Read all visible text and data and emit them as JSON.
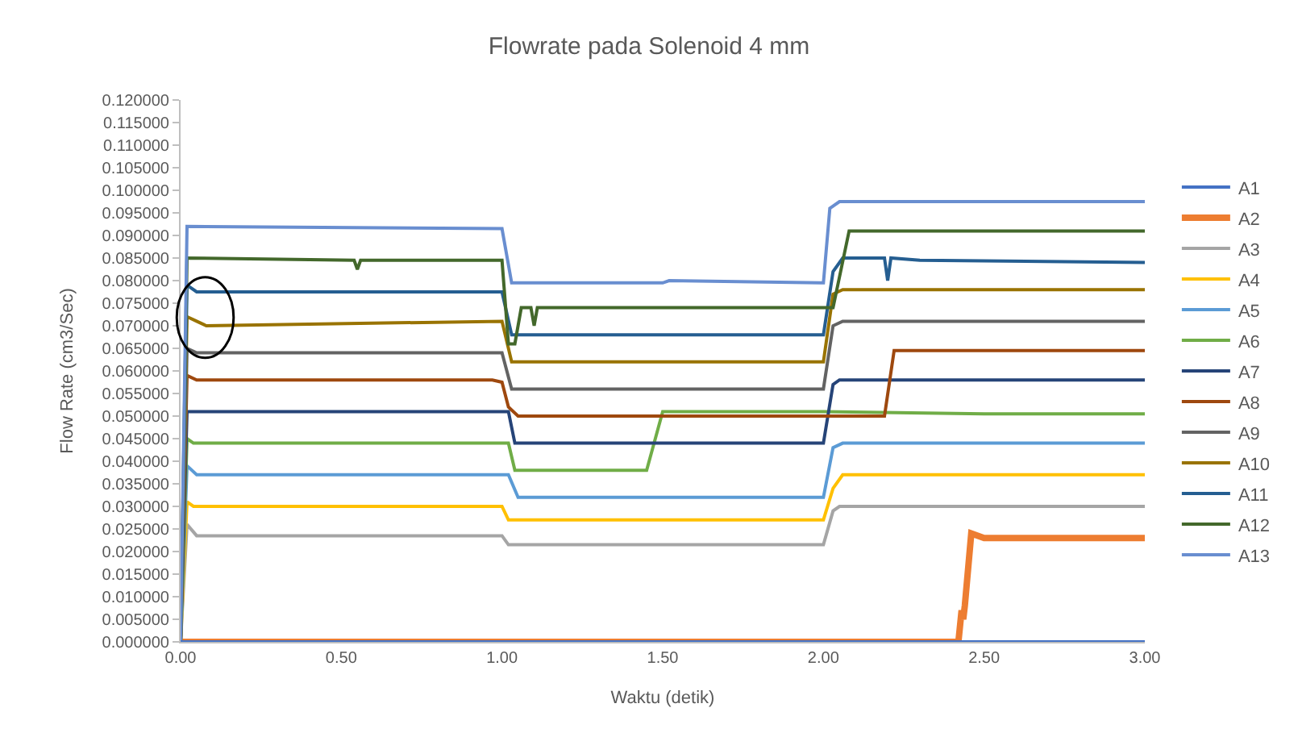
{
  "chart_data": {
    "type": "line",
    "title": "Flowrate pada Solenoid 4 mm",
    "xlabel": "Waktu (detik)",
    "ylabel": "Flow Rate (cm3/Sec)",
    "xlim": [
      0,
      3
    ],
    "ylim": [
      0,
      0.12
    ],
    "xticks": [
      {
        "value": 0,
        "label": "0.00"
      },
      {
        "value": 0.5,
        "label": "0.50"
      },
      {
        "value": 1,
        "label": "1.00"
      },
      {
        "value": 1.5,
        "label": "1.50"
      },
      {
        "value": 2,
        "label": "2.00"
      },
      {
        "value": 2.5,
        "label": "2.50"
      },
      {
        "value": 3,
        "label": "3.00"
      }
    ],
    "yticks": [
      {
        "value": 0,
        "label": "0.000000"
      },
      {
        "value": 0.005,
        "label": "0.005000"
      },
      {
        "value": 0.01,
        "label": "0.010000"
      },
      {
        "value": 0.015,
        "label": "0.015000"
      },
      {
        "value": 0.02,
        "label": "0.020000"
      },
      {
        "value": 0.025,
        "label": "0.025000"
      },
      {
        "value": 0.03,
        "label": "0.030000"
      },
      {
        "value": 0.035,
        "label": "0.035000"
      },
      {
        "value": 0.04,
        "label": "0.040000"
      },
      {
        "value": 0.045,
        "label": "0.045000"
      },
      {
        "value": 0.05,
        "label": "0.050000"
      },
      {
        "value": 0.055,
        "label": "0.055000"
      },
      {
        "value": 0.06,
        "label": "0.060000"
      },
      {
        "value": 0.065,
        "label": "0.065000"
      },
      {
        "value": 0.07,
        "label": "0.070000"
      },
      {
        "value": 0.075,
        "label": "0.075000"
      },
      {
        "value": 0.08,
        "label": "0.080000"
      },
      {
        "value": 0.085,
        "label": "0.085000"
      },
      {
        "value": 0.09,
        "label": "0.090000"
      },
      {
        "value": 0.095,
        "label": "0.095000"
      },
      {
        "value": 0.1,
        "label": "0.100000"
      },
      {
        "value": 0.105,
        "label": "0.105000"
      },
      {
        "value": 0.11,
        "label": "0.110000"
      },
      {
        "value": 0.115,
        "label": "0.115000"
      },
      {
        "value": 0.12,
        "label": "0.120000"
      }
    ],
    "grid": false,
    "legend": "right",
    "marker": "none",
    "line_style": "solid",
    "series": [
      {
        "name": "A1",
        "color": "#4472c4",
        "x": [
          0,
          3
        ],
        "values": [
          0,
          0
        ]
      },
      {
        "name": "A2",
        "color": "#ed7d31",
        "x": [
          0,
          2.42,
          2.43,
          2.435,
          2.44,
          2.46,
          2.5,
          3
        ],
        "values": [
          0,
          0,
          0.007,
          0.005,
          0.008,
          0.024,
          0.023,
          0.023
        ]
      },
      {
        "name": "A3",
        "color": "#a5a5a5",
        "x": [
          0,
          0.02,
          0.05,
          1.0,
          1.02,
          1.05,
          2.0,
          2.03,
          2.05,
          3
        ],
        "values": [
          0,
          0.026,
          0.0235,
          0.0235,
          0.0215,
          0.0215,
          0.0215,
          0.029,
          0.03,
          0.03
        ]
      },
      {
        "name": "A4",
        "color": "#ffc000",
        "x": [
          0,
          0.02,
          0.04,
          1.0,
          1.02,
          2.0,
          2.03,
          2.06,
          3
        ],
        "values": [
          0,
          0.031,
          0.03,
          0.03,
          0.027,
          0.027,
          0.034,
          0.037,
          0.037
        ]
      },
      {
        "name": "A5",
        "color": "#5b9bd5",
        "x": [
          0,
          0.02,
          0.05,
          1.02,
          1.05,
          2.0,
          2.03,
          2.06,
          3
        ],
        "values": [
          0,
          0.039,
          0.037,
          0.037,
          0.032,
          0.032,
          0.043,
          0.044,
          0.044
        ]
      },
      {
        "name": "A6",
        "color": "#70ad47",
        "x": [
          0,
          0.02,
          0.04,
          1.02,
          1.04,
          1.45,
          1.5,
          2.0,
          2.5,
          3
        ],
        "values": [
          0,
          0.045,
          0.044,
          0.044,
          0.038,
          0.038,
          0.051,
          0.051,
          0.0505,
          0.0505
        ]
      },
      {
        "name": "A7",
        "color": "#264478",
        "x": [
          0,
          0.02,
          1.02,
          1.04,
          2.0,
          2.03,
          2.05,
          3
        ],
        "values": [
          0,
          0.051,
          0.051,
          0.044,
          0.044,
          0.057,
          0.058,
          0.058
        ]
      },
      {
        "name": "A8",
        "color": "#9e480e",
        "x": [
          0,
          0.02,
          0.05,
          0.97,
          1.0,
          1.02,
          1.05,
          2.19,
          2.22,
          2.25,
          3
        ],
        "values": [
          0,
          0.059,
          0.058,
          0.058,
          0.0575,
          0.052,
          0.05,
          0.05,
          0.0645,
          0.0645,
          0.0645
        ]
      },
      {
        "name": "A9",
        "color": "#636363",
        "x": [
          0,
          0.02,
          0.05,
          1.0,
          1.03,
          2.0,
          2.03,
          2.06,
          3
        ],
        "values": [
          0,
          0.065,
          0.064,
          0.064,
          0.056,
          0.056,
          0.07,
          0.071,
          0.071
        ]
      },
      {
        "name": "A10",
        "color": "#997300",
        "x": [
          0,
          0.02,
          0.05,
          0.08,
          1.0,
          1.03,
          2.0,
          2.03,
          2.06,
          3
        ],
        "values": [
          0,
          0.072,
          0.071,
          0.07,
          0.071,
          0.062,
          0.062,
          0.077,
          0.078,
          0.078
        ]
      },
      {
        "name": "A11",
        "color": "#255e91",
        "x": [
          0,
          0.02,
          0.05,
          1.0,
          1.03,
          2.0,
          2.03,
          2.06,
          2.19,
          2.2,
          2.21,
          2.3,
          3
        ],
        "values": [
          0,
          0.079,
          0.0775,
          0.0775,
          0.068,
          0.068,
          0.082,
          0.085,
          0.085,
          0.08,
          0.085,
          0.0845,
          0.084
        ]
      },
      {
        "name": "A12",
        "color": "#43682b",
        "x": [
          0,
          0.02,
          0.54,
          0.55,
          0.56,
          1.0,
          1.02,
          1.04,
          1.06,
          1.09,
          1.1,
          1.11,
          2.0,
          2.03,
          2.08,
          3
        ],
        "values": [
          0,
          0.085,
          0.0845,
          0.0825,
          0.0845,
          0.0845,
          0.066,
          0.066,
          0.074,
          0.074,
          0.07,
          0.074,
          0.074,
          0.074,
          0.091,
          0.091
        ]
      },
      {
        "name": "A13",
        "color": "#698ed0",
        "x": [
          0,
          0.02,
          1.0,
          1.03,
          1.5,
          1.52,
          2.0,
          2.02,
          2.05,
          3
        ],
        "values": [
          0,
          0.092,
          0.0915,
          0.0795,
          0.0795,
          0.08,
          0.0795,
          0.096,
          0.0975,
          0.0975
        ]
      }
    ]
  }
}
